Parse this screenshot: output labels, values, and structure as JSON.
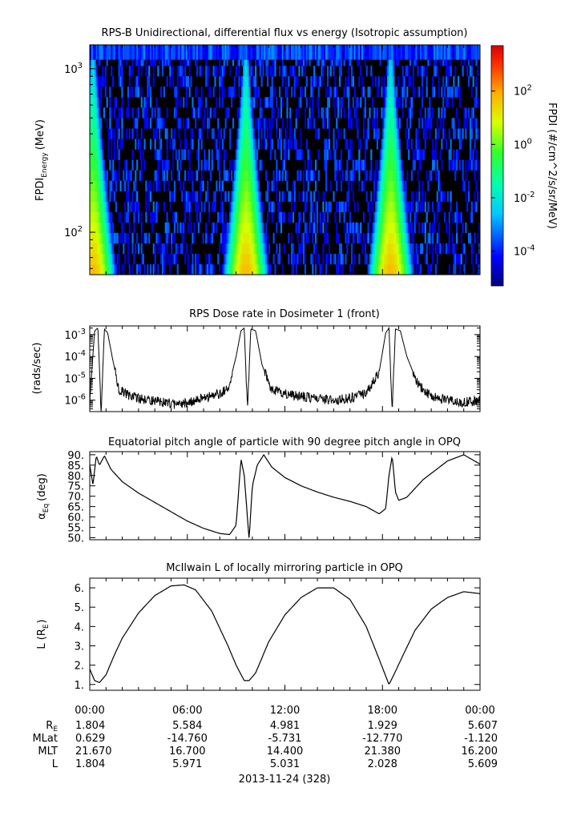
{
  "chart_data": [
    {
      "type": "heatmap",
      "title": "RPS-B  Unidirectional, differential flux vs energy (Isotropic assumption)",
      "ylabel_main": "FPDI",
      "ylabel_sub": "Energy",
      "ylabel_unit": "(MeV)",
      "y_log": true,
      "ylim": [
        55,
        1400
      ],
      "ytick_labels": [
        {
          "base": "10",
          "exp": "2",
          "value": 100
        },
        {
          "base": "10",
          "exp": "3",
          "value": 1000
        }
      ],
      "xlim_hours": [
        0,
        24
      ],
      "ridge_hours": [
        0.2,
        9.6,
        18.5
      ],
      "colorbar": {
        "label": "FPDI (#/cm^2/s/sr/MeV)",
        "log_range": [
          -5.3,
          3.7
        ],
        "tick_labels": [
          {
            "base": "10",
            "exp": "2",
            "value": 2
          },
          {
            "base": "10",
            "exp": "0",
            "value": 0
          },
          {
            "base": "10",
            "exp": "-2",
            "value": -2
          },
          {
            "base": "10",
            "exp": "-4",
            "value": -4
          }
        ]
      }
    },
    {
      "type": "line",
      "title": "RPS  Dose rate in Dosimeter 1 (front)",
      "ylabel": "(rads/sec)",
      "y_log": true,
      "ylim": [
        3e-07,
        0.0025
      ],
      "ytick_labels": [
        {
          "base": "10",
          "exp": "-3",
          "value": 0.001
        },
        {
          "base": "10",
          "exp": "-4",
          "value": 0.0001
        },
        {
          "base": "10",
          "exp": "-5",
          "value": 1e-05
        },
        {
          "base": "10",
          "exp": "-6",
          "value": 1e-06
        }
      ],
      "x_hours": [
        0,
        0.3,
        0.5,
        0.7,
        0.9,
        1.1,
        1.4,
        1.8,
        2.5,
        3.5,
        4.5,
        5.5,
        6.5,
        7.5,
        8.5,
        9.0,
        9.3,
        9.5,
        9.7,
        9.9,
        10.2,
        10.6,
        11.2,
        12.0,
        13.0,
        14.0,
        15.0,
        16.0,
        17.0,
        17.8,
        18.2,
        18.4,
        18.6,
        18.8,
        19.1,
        19.5,
        20.2,
        21.0,
        22.0,
        23.0,
        24.0
      ],
      "values": [
        1e-06,
        0.0015,
        0.002,
        3e-07,
        0.0018,
        0.0012,
        8e-05,
        3e-06,
        1.5e-06,
        1e-06,
        8e-07,
        6e-07,
        1e-06,
        1.5e-06,
        3e-06,
        0.0001,
        0.0015,
        0.002,
        3e-07,
        0.0018,
        0.0015,
        4e-05,
        3e-06,
        2e-06,
        1.5e-06,
        1.2e-06,
        1e-06,
        1.2e-06,
        2e-06,
        2e-05,
        0.0012,
        0.002,
        3e-07,
        0.0018,
        0.0015,
        0.0001,
        5e-06,
        1.5e-06,
        1e-06,
        8e-07,
        1e-06
      ]
    },
    {
      "type": "line",
      "title": "Equatorial pitch angle of particle with 90 degree pitch angle in OPQ",
      "ylabel_main": "α",
      "ylabel_sub": "Eq",
      "ylabel_unit": "(deg)",
      "ylim": [
        49,
        91.5
      ],
      "yticks": [
        90,
        85,
        80,
        75,
        70,
        65,
        60,
        55,
        50
      ],
      "ytick_labels": [
        "90.",
        "85.",
        "80.",
        "75.",
        "70.",
        "65.",
        "60.",
        "55.",
        "50."
      ],
      "x_hours": [
        0,
        0.2,
        0.4,
        0.6,
        0.9,
        1.3,
        2.0,
        3.0,
        4.0,
        5.0,
        6.0,
        7.0,
        8.0,
        8.6,
        9.0,
        9.3,
        9.5,
        9.8,
        10.0,
        10.3,
        10.7,
        11.2,
        12.0,
        13.0,
        14.0,
        15.0,
        16.0,
        17.0,
        17.8,
        18.2,
        18.4,
        18.6,
        18.8,
        19.0,
        19.5,
        20.5,
        22.0,
        23.0,
        24.0
      ],
      "values": [
        85.0,
        75.5,
        89.5,
        85.0,
        89.5,
        83.0,
        77.0,
        71.5,
        67.0,
        62.5,
        58.0,
        54.5,
        52.0,
        51.5,
        56.0,
        88.0,
        80.0,
        49.2,
        75.0,
        85.0,
        90.0,
        84.0,
        79.0,
        75.0,
        72.0,
        69.5,
        67.5,
        65.0,
        61.5,
        64.0,
        80.0,
        89.5,
        72.0,
        68.0,
        69.5,
        78.0,
        87.0,
        90.0,
        85.5
      ]
    },
    {
      "type": "line",
      "title": "McIlwain L of locally mirroring particle in OPQ",
      "ylabel_main": "L (R",
      "ylabel_sub": "E",
      "ylabel_unit": ")",
      "ylim": [
        0.7,
        6.5
      ],
      "yticks": [
        1,
        2,
        3,
        4,
        5,
        6
      ],
      "ytick_labels": [
        "1.",
        "2.",
        "3.",
        "4.",
        "5.",
        "6."
      ],
      "x_hours": [
        0,
        0.3,
        0.6,
        1.0,
        1.5,
        2.0,
        3.0,
        4.0,
        5.0,
        5.8,
        6.5,
        7.5,
        8.5,
        9.0,
        9.5,
        9.8,
        10.2,
        11.0,
        12.0,
        13.0,
        14.0,
        15.0,
        16.0,
        17.0,
        17.8,
        18.4,
        18.7,
        19.2,
        20.0,
        21.0,
        22.0,
        23.0,
        24.0
      ],
      "values": [
        1.8,
        1.2,
        1.1,
        1.5,
        2.5,
        3.4,
        4.7,
        5.6,
        6.1,
        6.15,
        5.9,
        4.8,
        3.0,
        2.0,
        1.2,
        1.2,
        1.6,
        3.2,
        4.6,
        5.5,
        6.0,
        6.0,
        5.4,
        4.0,
        2.3,
        1.0,
        1.5,
        2.4,
        3.8,
        4.9,
        5.5,
        5.8,
        5.7
      ]
    }
  ],
  "xaxis": {
    "tick_times": [
      "00:00",
      "06:00",
      "12:00",
      "18:00",
      "00:00"
    ],
    "row_labels": [
      {
        "base": "R",
        "sub": "E"
      },
      {
        "base": "MLat",
        "sub": ""
      },
      {
        "base": "MLT",
        "sub": ""
      },
      {
        "base": "L",
        "sub": ""
      }
    ],
    "rows": [
      [
        "1.804",
        "5.584",
        "4.981",
        "1.929",
        "5.607"
      ],
      [
        "0.629",
        "-14.760",
        "-5.731",
        "-12.770",
        "-1.120"
      ],
      [
        "21.670",
        "16.700",
        "14.400",
        "21.380",
        "16.200"
      ],
      [
        "1.804",
        "5.971",
        "5.031",
        "2.028",
        "5.609"
      ]
    ],
    "date_label": "2013-11-24 (328)"
  },
  "colors": {
    "line": "#000000",
    "background": "#ffffff"
  }
}
